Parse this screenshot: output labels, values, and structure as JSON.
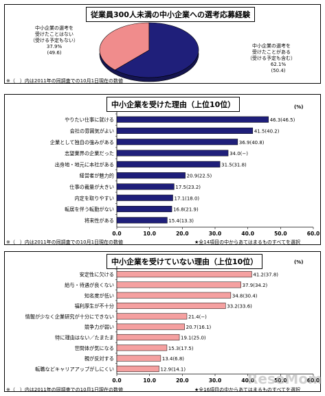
{
  "colors": {
    "navy": "#1f1f7a",
    "salmon": "#f08c8c",
    "bar_navy": "#1f1f7a",
    "bar_pink": "#f5a0a0"
  },
  "chart_data": [
    {
      "type": "pie",
      "title": "従業員300人未満の中小企業への選考応募経験",
      "note": "※（　）内は2011年の同調査での10月1日現在の数値",
      "slices": [
        {
          "label_lines": [
            "中小企業の選考を",
            "受けたことがある",
            "（受ける予定も含む）"
          ],
          "value": 62.1,
          "prev": "(50.4)"
        },
        {
          "label_lines": [
            "中小企業の選考を",
            "受けたことはない",
            "（受ける予定もない）"
          ],
          "value": 37.9,
          "prev": "(49.6)"
        }
      ]
    },
    {
      "type": "bar",
      "title": "中小企業を受けた理由（上位10位）",
      "unit": "(%)",
      "categories": [
        "やりたい仕事に就ける",
        "会社の雰囲気がよい",
        "企業として独自の強みがある",
        "志望業界の企業だった",
        "出身地・地元に本社がある",
        "経営者が魅力的",
        "仕事の裁量が大きい",
        "内定を取りやすい",
        "転居を伴う転勤がない",
        "将来性がある"
      ],
      "values": [
        46.3,
        41.5,
        36.9,
        34.0,
        31.5,
        20.9,
        17.5,
        17.1,
        16.8,
        15.4
      ],
      "prev": [
        "(46.5)",
        "(40.2)",
        "(40.8)",
        "(−)",
        "(31.8)",
        "(22.5)",
        "(23.2)",
        "(18.0)",
        "(21.9)",
        "(13.3)"
      ],
      "xlim": [
        0,
        60
      ],
      "ticks": [
        "0.0",
        "10.0",
        "20.0",
        "30.0",
        "40.0",
        "50.0",
        "60.0"
      ],
      "note_left": "※（　）内は2011年の同調査での10月1日現在の数値",
      "note_right": "★全14項目の中からあてはまるものすべてを選択"
    },
    {
      "type": "bar",
      "title": "中小企業を受けていない理由（上位10位）",
      "unit": "(%)",
      "categories": [
        "安定性に欠ける",
        "給与・待遇が良くない",
        "知名度が低い",
        "福利厚生が不十分",
        "情報が少なく企業研究が十分にできない",
        "競争力が弱い",
        "特に理由はない／たまたま",
        "世間体が気になる",
        "親が反対する",
        "転職などキャリアアップがしにくい"
      ],
      "values": [
        41.2,
        37.9,
        34.8,
        33.2,
        21.4,
        20.7,
        19.1,
        15.3,
        13.4,
        12.9
      ],
      "prev": [
        "(37.8)",
        "(34.2)",
        "(30.4)",
        "(33.6)",
        "(−)",
        "(16.1)",
        "(25.0)",
        "(17.5)",
        "(6.8)",
        "(14.1)"
      ],
      "xlim": [
        0,
        60
      ],
      "ticks": [
        "0.0",
        "10.0",
        "20.0",
        "30.0",
        "40.0",
        "50.0",
        "60.0"
      ],
      "note_left": "※（　）内は2011年の同調査での10月1日現在の数値",
      "note_right": "★全16項目の中からあてはまるものすべてを選択"
    }
  ],
  "watermark": "ReseMom"
}
